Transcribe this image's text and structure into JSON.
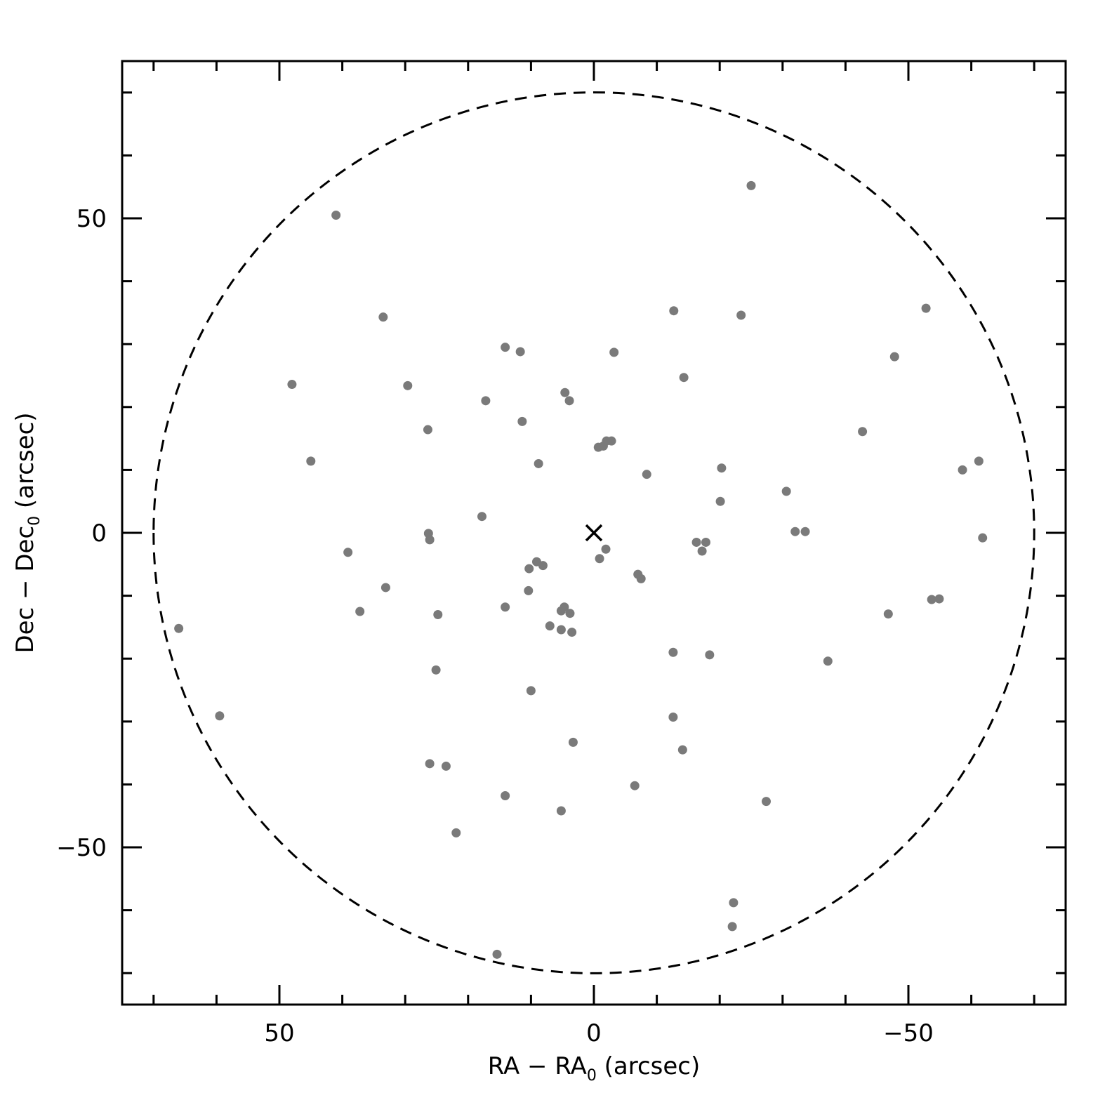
{
  "chart_data": {
    "type": "scatter",
    "xlabel": {
      "main": "RA − RA",
      "sub": "0",
      "unit": " (arcsec)"
    },
    "ylabel": {
      "main": "Dec − Dec",
      "sub": "0",
      "unit": " (arcsec)"
    },
    "xlim": [
      75,
      -75
    ],
    "ylim": [
      -75,
      75
    ],
    "x_reversed": true,
    "grid": false,
    "xticks": {
      "labels": [
        "50",
        "0",
        "−50"
      ],
      "values": [
        50,
        0,
        -50
      ],
      "minor_step": 10
    },
    "yticks": {
      "labels": [
        "50",
        "0",
        "−50"
      ],
      "values": [
        50,
        0,
        -50
      ],
      "minor_step": 10
    },
    "center_marker": {
      "symbol": "×",
      "x": 0,
      "y": 0
    },
    "circle": {
      "center": [
        0,
        0
      ],
      "radius": 70,
      "style": "dashed"
    },
    "colors": {
      "points": "#7a7a7a",
      "axes": "#000000",
      "circle": "#000000"
    },
    "series": [
      {
        "points": [
          [
            -25.0,
            55.2
          ],
          [
            41.0,
            50.5
          ],
          [
            33.5,
            34.3
          ],
          [
            -12.7,
            35.3
          ],
          [
            -23.4,
            34.6
          ],
          [
            -52.8,
            35.7
          ],
          [
            14.1,
            29.5
          ],
          [
            11.7,
            28.8
          ],
          [
            -3.2,
            28.7
          ],
          [
            -47.8,
            28.0
          ],
          [
            48.0,
            23.6
          ],
          [
            29.6,
            23.4
          ],
          [
            -14.3,
            24.7
          ],
          [
            4.6,
            22.3
          ],
          [
            3.9,
            21.0
          ],
          [
            17.2,
            21.0
          ],
          [
            11.4,
            17.7
          ],
          [
            26.4,
            16.4
          ],
          [
            -42.7,
            16.1
          ],
          [
            -2.0,
            14.6
          ],
          [
            -2.8,
            14.6
          ],
          [
            -1.5,
            13.8
          ],
          [
            -0.7,
            13.6
          ],
          [
            45.0,
            11.4
          ],
          [
            8.8,
            11.0
          ],
          [
            -61.2,
            11.4
          ],
          [
            -58.6,
            10.0
          ],
          [
            -20.3,
            10.3
          ],
          [
            -8.4,
            9.3
          ],
          [
            -30.6,
            6.6
          ],
          [
            -20.1,
            5.0
          ],
          [
            17.8,
            2.6
          ],
          [
            26.3,
            -0.1
          ],
          [
            26.1,
            -1.1
          ],
          [
            -32.0,
            0.2
          ],
          [
            -33.6,
            0.2
          ],
          [
            -61.8,
            -0.8
          ],
          [
            -16.3,
            -1.5
          ],
          [
            -17.8,
            -1.5
          ],
          [
            -1.9,
            -2.6
          ],
          [
            -17.2,
            -2.9
          ],
          [
            39.1,
            -3.1
          ],
          [
            9.1,
            -4.6
          ],
          [
            -0.9,
            -4.1
          ],
          [
            8.1,
            -5.2
          ],
          [
            10.3,
            -5.7
          ],
          [
            -7.0,
            -6.6
          ],
          [
            -7.5,
            -7.3
          ],
          [
            33.1,
            -8.7
          ],
          [
            10.4,
            -9.2
          ],
          [
            14.1,
            -11.8
          ],
          [
            37.2,
            -12.5
          ],
          [
            24.8,
            -13.0
          ],
          [
            4.7,
            -11.8
          ],
          [
            5.2,
            -12.4
          ],
          [
            3.8,
            -12.8
          ],
          [
            -46.8,
            -12.9
          ],
          [
            -53.7,
            -10.6
          ],
          [
            -54.9,
            -10.5
          ],
          [
            7.0,
            -14.8
          ],
          [
            5.2,
            -15.4
          ],
          [
            3.5,
            -15.8
          ],
          [
            66.0,
            -15.2
          ],
          [
            -12.6,
            -19.0
          ],
          [
            -18.4,
            -19.4
          ],
          [
            -37.2,
            -20.4
          ],
          [
            25.1,
            -21.8
          ],
          [
            10.0,
            -25.1
          ],
          [
            59.5,
            -29.1
          ],
          [
            -12.6,
            -29.3
          ],
          [
            3.3,
            -33.3
          ],
          [
            -14.1,
            -34.5
          ],
          [
            26.1,
            -36.7
          ],
          [
            23.5,
            -37.1
          ],
          [
            -6.5,
            -40.2
          ],
          [
            14.1,
            -41.8
          ],
          [
            -27.4,
            -42.7
          ],
          [
            5.2,
            -44.2
          ],
          [
            21.9,
            -47.7
          ],
          [
            -22.2,
            -58.8
          ],
          [
            -22.0,
            -62.6
          ],
          [
            15.4,
            -67.0
          ]
        ]
      }
    ]
  }
}
